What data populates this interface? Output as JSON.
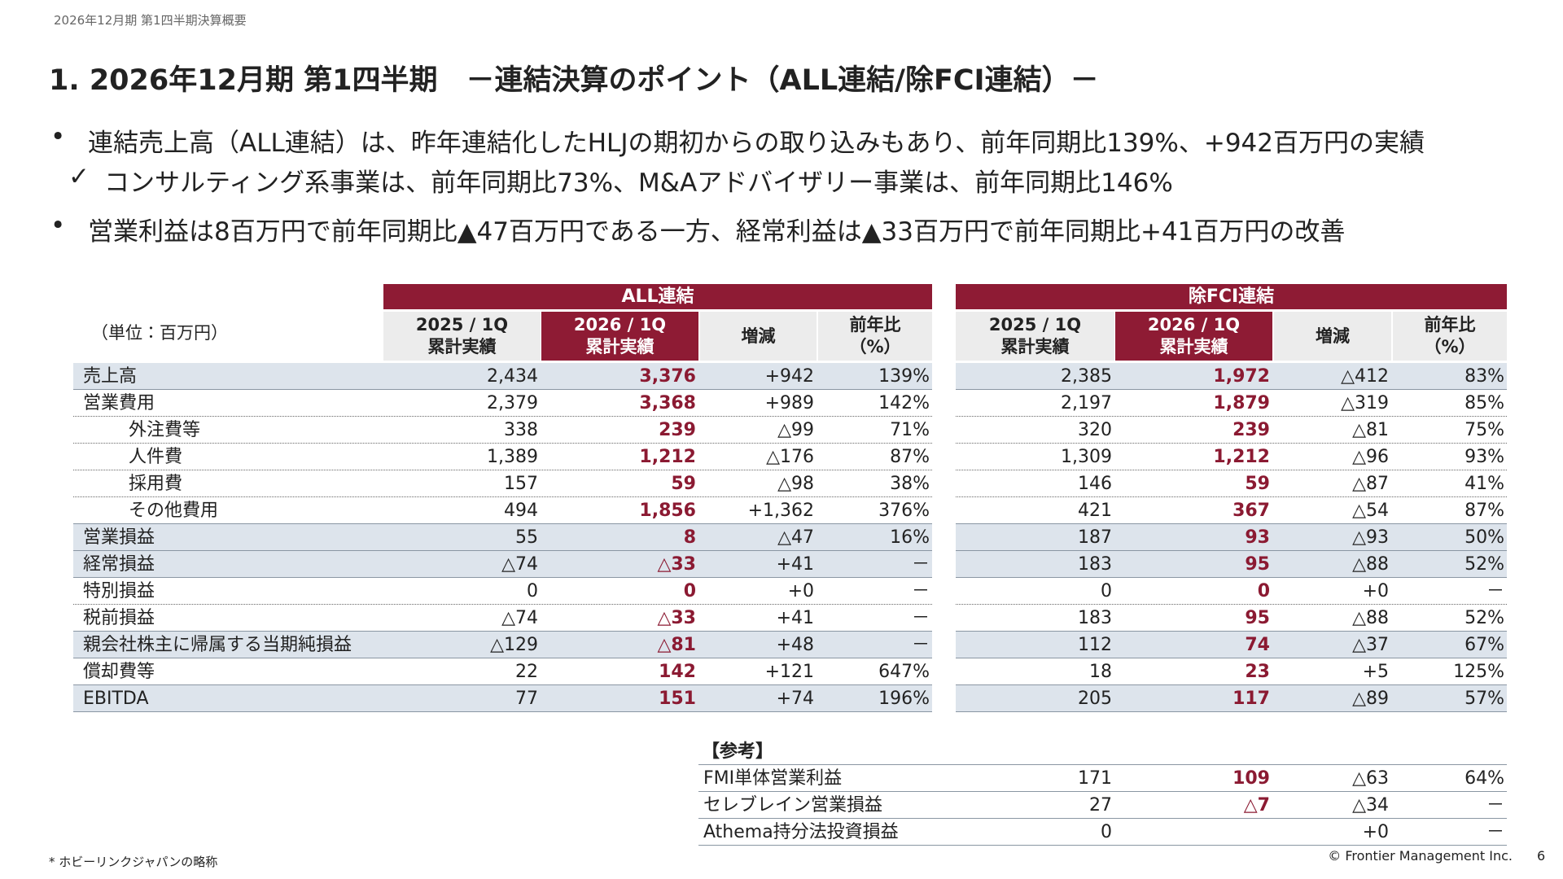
{
  "header": "2026年12月期 第1四半期決算概要",
  "title": "1. 2026年12月期 第1四半期　－連結決算のポイント（ALL連結/除FCI連結）－",
  "bullets": [
    {
      "marker": "•",
      "text": "連結売上高（ALL連結）は、昨年連結化したHLJの期初からの取り込みもあり、前年同期比139%、+942百万円の実績"
    },
    {
      "marker": "✓",
      "text": "コンサルティング系事業は、前年同期比73%、M&Aアドバイザリー事業は、前年同期比146%"
    },
    {
      "marker": "•",
      "text": "営業利益は8百万円で前年同期比▲47百万円である一方、経常利益は▲33百万円で前年同期比+41百万円の改善"
    }
  ],
  "table": {
    "unit": "（単位：百万円）",
    "groups": [
      "ALL連結",
      "除FCI連結"
    ],
    "columns": [
      [
        "2025 / 1Q",
        "累計実績"
      ],
      [
        "2026 / 1Q",
        "累計実績"
      ],
      [
        "増減"
      ],
      [
        "前年比",
        "（%）"
      ]
    ],
    "rows": [
      {
        "label": "売上高",
        "all": [
          "2,434",
          "3,376",
          "+942",
          "139%"
        ],
        "fci": [
          "2,385",
          "1,972",
          "△412",
          "83%"
        ]
      },
      {
        "label": "営業費用",
        "all": [
          "2,379",
          "3,368",
          "+989",
          "142%"
        ],
        "fci": [
          "2,197",
          "1,879",
          "△319",
          "85%"
        ]
      },
      {
        "label": "外注費等",
        "all": [
          "338",
          "239",
          "△99",
          "71%"
        ],
        "fci": [
          "320",
          "239",
          "△81",
          "75%"
        ]
      },
      {
        "label": "人件費",
        "all": [
          "1,389",
          "1,212",
          "△176",
          "87%"
        ],
        "fci": [
          "1,309",
          "1,212",
          "△96",
          "93%"
        ]
      },
      {
        "label": "採用費",
        "all": [
          "157",
          "59",
          "△98",
          "38%"
        ],
        "fci": [
          "146",
          "59",
          "△87",
          "41%"
        ]
      },
      {
        "label": "その他費用",
        "all": [
          "494",
          "1,856",
          "+1,362",
          "376%"
        ],
        "fci": [
          "421",
          "367",
          "△54",
          "87%"
        ]
      },
      {
        "label": "営業損益",
        "all": [
          "55",
          "8",
          "△47",
          "16%"
        ],
        "fci": [
          "187",
          "93",
          "△93",
          "50%"
        ]
      },
      {
        "label": "経常損益",
        "all": [
          "△74",
          "△33",
          "+41",
          "－"
        ],
        "fci": [
          "183",
          "95",
          "△88",
          "52%"
        ]
      },
      {
        "label": "特別損益",
        "all": [
          "0",
          "0",
          "+0",
          "－"
        ],
        "fci": [
          "0",
          "0",
          "+0",
          "－"
        ]
      },
      {
        "label": "税前損益",
        "all": [
          "△74",
          "△33",
          "+41",
          "－"
        ],
        "fci": [
          "183",
          "95",
          "△88",
          "52%"
        ]
      },
      {
        "label": "親会社株主に帰属する当期純損益",
        "all": [
          "△129",
          "△81",
          "+48",
          "－"
        ],
        "fci": [
          "112",
          "74",
          "△37",
          "67%"
        ]
      },
      {
        "label": "償却費等",
        "all": [
          "22",
          "142",
          "+121",
          "647%"
        ],
        "fci": [
          "18",
          "23",
          "+5",
          "125%"
        ]
      },
      {
        "label": "EBITDA",
        "all": [
          "77",
          "151",
          "+74",
          "196%"
        ],
        "fci": [
          "205",
          "117",
          "△89",
          "57%"
        ]
      }
    ]
  },
  "reference": {
    "title": "【参考】",
    "rows": [
      {
        "label": "FMI単体営業利益",
        "values": [
          "171",
          "109",
          "△63",
          "64%"
        ]
      },
      {
        "label": "セレブレイン営業損益",
        "values": [
          "27",
          "△7",
          "△34",
          "－"
        ]
      },
      {
        "label": "Athema持分法投資損益",
        "values": [
          "0",
          "",
          "+0",
          "－"
        ]
      }
    ]
  },
  "footnote": "* ホビーリンクジャパンの略称",
  "copyright": "© Frontier Management Inc.",
  "page_number": "6"
}
